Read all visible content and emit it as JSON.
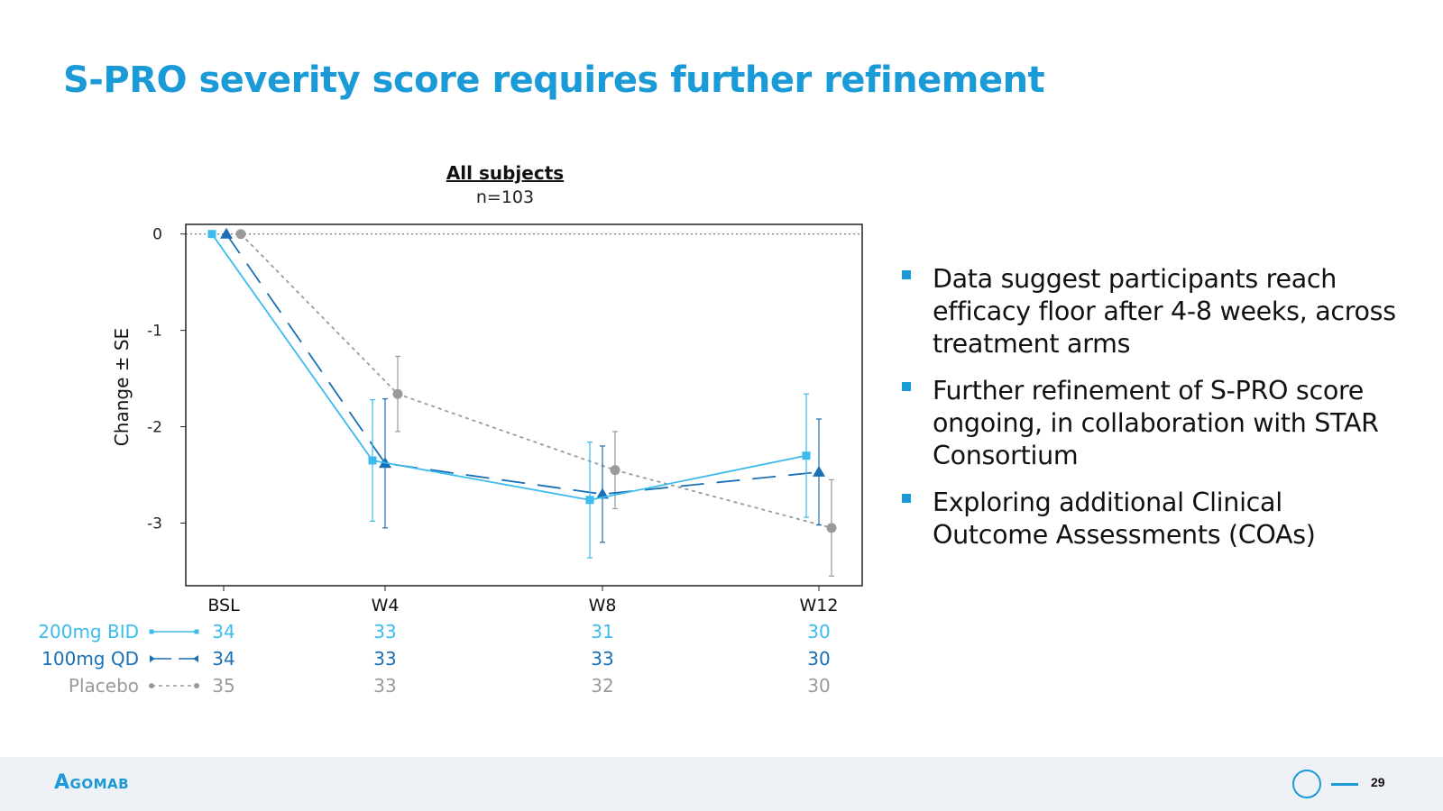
{
  "slide": {
    "title": "S-PRO severity score requires further refinement",
    "bullets": [
      "Data suggest participants reach efficacy floor after 4-8 weeks, across treatment arms",
      "Further refinement of S-PRO score ongoing, in collaboration with STAR Consortium",
      "Exploring additional Clinical Outcome Assessments (COAs)"
    ],
    "logo": "Agomab",
    "page_number": "29"
  },
  "colors": {
    "title": "#1a9ad6",
    "bid": "#3bbcec",
    "qd": "#1a6fb5",
    "placebo": "#9a9a9a"
  },
  "chart_data": {
    "type": "line",
    "title": "All subjects",
    "subtitle": "n=103",
    "ylabel": "Change ± SE",
    "xlabel": "",
    "categories": [
      "BSL",
      "W4",
      "W8",
      "W12"
    ],
    "yticks": [
      0,
      -1,
      -2,
      -3
    ],
    "ylim": [
      -3.65,
      0.1
    ],
    "grid": false,
    "reference_line": 0,
    "legend_placement": "bottom-left",
    "series": [
      {
        "name": "200mg BID",
        "color": "#3bbcec",
        "style": "solid",
        "marker": "square",
        "values": [
          0,
          -2.35,
          -2.76,
          -2.3
        ],
        "se": [
          0,
          0.63,
          0.6,
          0.64
        ],
        "n": [
          34,
          33,
          31,
          30
        ]
      },
      {
        "name": "100mg QD",
        "color": "#1a6fb5",
        "style": "longdash",
        "marker": "triangle",
        "values": [
          0,
          -2.38,
          -2.7,
          -2.47
        ],
        "se": [
          0,
          0.67,
          0.5,
          0.55
        ],
        "n": [
          34,
          33,
          33,
          30
        ]
      },
      {
        "name": "Placebo",
        "color": "#9a9a9a",
        "style": "dotted",
        "marker": "circle",
        "values": [
          0,
          -1.66,
          -2.45,
          -3.05
        ],
        "se": [
          0,
          0.39,
          0.4,
          0.5
        ],
        "n": [
          35,
          33,
          32,
          30
        ]
      }
    ]
  }
}
